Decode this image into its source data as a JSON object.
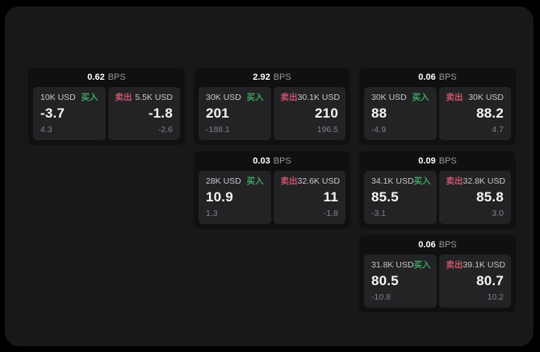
{
  "page": {
    "bps_unit": "BPS",
    "buy_label": "买入",
    "sell_label": "卖出"
  },
  "colors": {
    "buy": "#3da55f",
    "sell": "#c9536b"
  },
  "cards": [
    {
      "bps": "0.62",
      "buy": {
        "size": "10K USD",
        "value": "-3.7",
        "delta": "4.3"
      },
      "sell": {
        "size": "5.5K USD",
        "value": "-1.8",
        "delta": "-2.6"
      }
    },
    {
      "bps": "2.92",
      "buy": {
        "size": "30K USD",
        "value": "201",
        "delta": "-188.1"
      },
      "sell": {
        "size": "30.1K USD",
        "value": "210",
        "delta": "196.5"
      }
    },
    {
      "bps": "0.06",
      "buy": {
        "size": "30K USD",
        "value": "88",
        "delta": "-4.9"
      },
      "sell": {
        "size": "30K USD",
        "value": "88.2",
        "delta": "4.7"
      }
    },
    {
      "bps": "0.03",
      "buy": {
        "size": "28K USD",
        "value": "10.9",
        "delta": "1.3"
      },
      "sell": {
        "size": "32.6K USD",
        "value": "11",
        "delta": "-1.8"
      }
    },
    {
      "bps": "0.09",
      "buy": {
        "size": "34.1K USD",
        "value": "85.5",
        "delta": "-3.1"
      },
      "sell": {
        "size": "32.8K USD",
        "value": "85.8",
        "delta": "3.0"
      }
    },
    {
      "bps": "0.06",
      "buy": {
        "size": "31.8K USD",
        "value": "80.5",
        "delta": "-10.8"
      },
      "sell": {
        "size": "39.1K USD",
        "value": "80.7",
        "delta": "10.2"
      }
    }
  ]
}
